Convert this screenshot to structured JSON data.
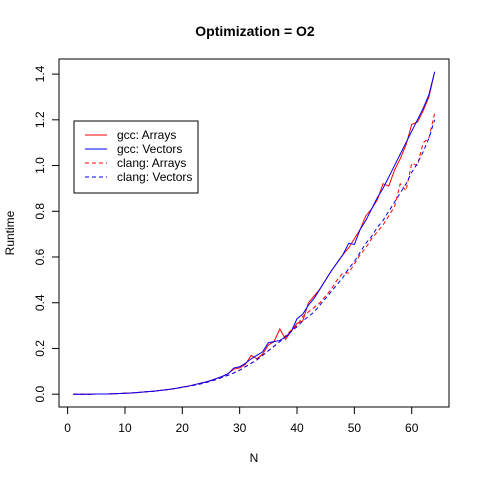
{
  "chart_data": {
    "type": "line",
    "title": "Optimization = O2",
    "xlabel": "N",
    "ylabel": "Runtime",
    "xlim": [
      -1.5,
      66.5
    ],
    "ylim": [
      -0.056,
      1.466
    ],
    "xticks": [
      0,
      10,
      20,
      30,
      40,
      50,
      60
    ],
    "yticks": [
      0.0,
      0.2,
      0.4,
      0.6,
      0.8,
      1.0,
      1.2,
      1.4
    ],
    "ytick_labels": [
      "0.0",
      "0.2",
      "0.4",
      "0.6",
      "0.8",
      "1.0",
      "1.2",
      "1.4"
    ],
    "grid": false,
    "legend_position": "left",
    "x": [
      1,
      2,
      3,
      4,
      5,
      6,
      7,
      8,
      9,
      10,
      11,
      12,
      13,
      14,
      15,
      16,
      17,
      18,
      19,
      20,
      21,
      22,
      23,
      24,
      25,
      26,
      27,
      28,
      29,
      30,
      31,
      32,
      33,
      34,
      35,
      36,
      37,
      38,
      39,
      40,
      41,
      42,
      43,
      44,
      45,
      46,
      47,
      48,
      49,
      50,
      51,
      52,
      53,
      54,
      55,
      56,
      57,
      58,
      59,
      60,
      61,
      62,
      63,
      64
    ],
    "series": [
      {
        "name": "gcc: Arrays",
        "color": "#ff0000",
        "dash": "solid",
        "values": [
          0.0,
          0.0,
          0.0,
          0.0,
          0.001,
          0.001,
          0.001,
          0.002,
          0.003,
          0.004,
          0.005,
          0.007,
          0.009,
          0.011,
          0.013,
          0.016,
          0.019,
          0.022,
          0.026,
          0.031,
          0.035,
          0.041,
          0.047,
          0.053,
          0.06,
          0.069,
          0.078,
          0.09,
          0.11,
          0.115,
          0.13,
          0.17,
          0.155,
          0.175,
          0.215,
          0.23,
          0.285,
          0.24,
          0.275,
          0.31,
          0.32,
          0.4,
          0.43,
          0.46,
          0.5,
          0.54,
          0.575,
          0.61,
          0.64,
          0.68,
          0.72,
          0.78,
          0.81,
          0.85,
          0.92,
          0.91,
          0.98,
          1.03,
          1.09,
          1.18,
          1.19,
          1.24,
          1.3,
          1.41
        ]
      },
      {
        "name": "gcc: Vectors",
        "color": "#0000ff",
        "dash": "solid",
        "values": [
          0.0,
          0.0,
          0.0,
          0.0,
          0.001,
          0.001,
          0.001,
          0.002,
          0.003,
          0.004,
          0.005,
          0.007,
          0.009,
          0.011,
          0.013,
          0.016,
          0.019,
          0.022,
          0.026,
          0.031,
          0.035,
          0.041,
          0.047,
          0.053,
          0.06,
          0.069,
          0.078,
          0.09,
          0.115,
          0.12,
          0.135,
          0.155,
          0.17,
          0.185,
          0.225,
          0.23,
          0.235,
          0.25,
          0.275,
          0.33,
          0.35,
          0.39,
          0.42,
          0.46,
          0.5,
          0.54,
          0.575,
          0.61,
          0.66,
          0.655,
          0.72,
          0.76,
          0.81,
          0.86,
          0.9,
          0.95,
          1.0,
          1.05,
          1.1,
          1.15,
          1.2,
          1.25,
          1.31,
          1.41
        ]
      },
      {
        "name": "clang: Arrays",
        "color": "#ff0000",
        "dash": "dashed",
        "values": [
          0.0,
          0.0,
          0.0,
          0.0,
          0.001,
          0.001,
          0.001,
          0.002,
          0.003,
          0.004,
          0.005,
          0.007,
          0.009,
          0.011,
          0.013,
          0.016,
          0.019,
          0.022,
          0.026,
          0.03,
          0.034,
          0.039,
          0.044,
          0.05,
          0.057,
          0.065,
          0.074,
          0.083,
          0.093,
          0.105,
          0.12,
          0.135,
          0.15,
          0.17,
          0.19,
          0.21,
          0.23,
          0.255,
          0.28,
          0.3,
          0.34,
          0.36,
          0.38,
          0.4,
          0.43,
          0.46,
          0.5,
          0.53,
          0.53,
          0.57,
          0.61,
          0.64,
          0.68,
          0.71,
          0.74,
          0.78,
          0.82,
          0.92,
          0.89,
          1.01,
          1.0,
          1.1,
          1.12,
          1.23
        ]
      },
      {
        "name": "clang: Vectors",
        "color": "#0000ff",
        "dash": "dashed",
        "values": [
          0.0,
          0.0,
          0.0,
          0.0,
          0.001,
          0.001,
          0.001,
          0.002,
          0.003,
          0.004,
          0.005,
          0.007,
          0.009,
          0.011,
          0.013,
          0.016,
          0.019,
          0.022,
          0.026,
          0.03,
          0.034,
          0.039,
          0.044,
          0.05,
          0.057,
          0.065,
          0.074,
          0.083,
          0.093,
          0.105,
          0.12,
          0.135,
          0.15,
          0.17,
          0.19,
          0.21,
          0.23,
          0.25,
          0.275,
          0.295,
          0.32,
          0.34,
          0.36,
          0.39,
          0.42,
          0.45,
          0.48,
          0.51,
          0.55,
          0.58,
          0.62,
          0.66,
          0.69,
          0.73,
          0.76,
          0.8,
          0.84,
          0.88,
          0.92,
          0.97,
          1.01,
          1.06,
          1.12,
          1.2
        ]
      }
    ]
  }
}
